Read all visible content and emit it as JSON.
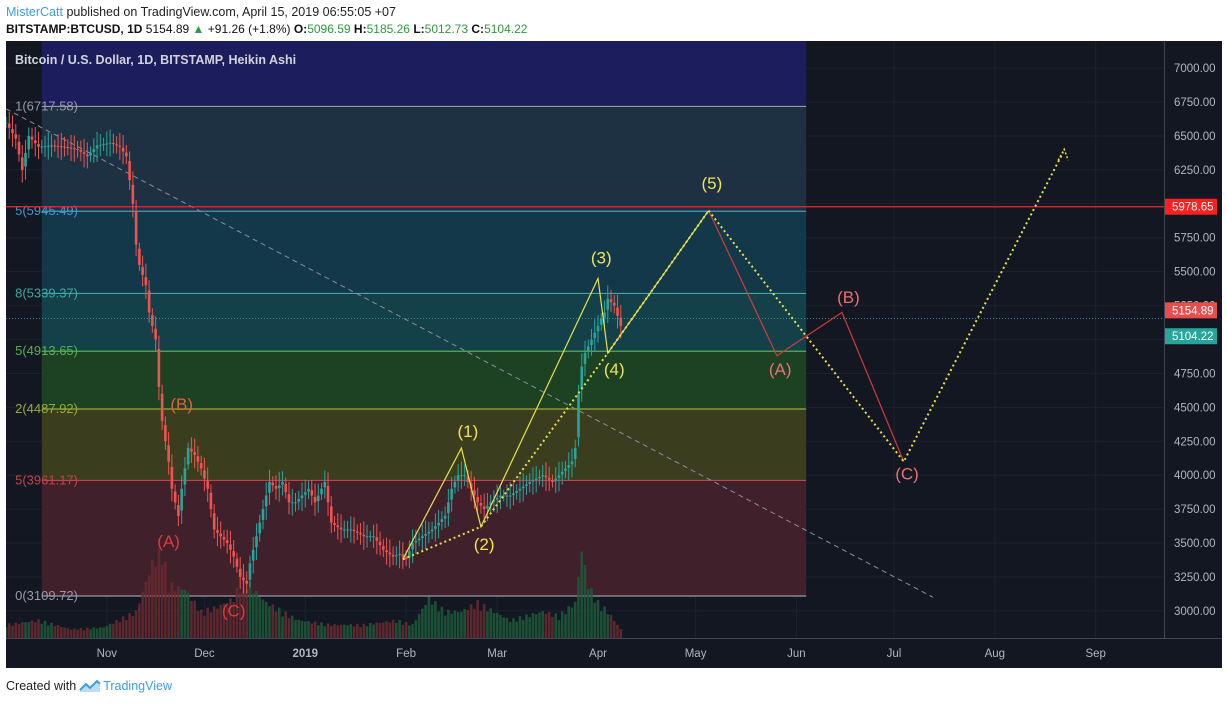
{
  "header": {
    "author": "MisterCatt",
    "published_text": "published on TradingView.com, April 15, 2019 06:55:05 +07",
    "symbol": "BITSTAMP:BTCUSD, 1D",
    "last_price": "5154.89",
    "change_text": "+91.26 (+1.8%)",
    "open_label": "O:",
    "open_value": "5096.59",
    "high_label": "H:",
    "high_value": "5185.26",
    "low_label": "L:",
    "low_value": "5012.73",
    "close_label": "C:",
    "close_value": "5104.22"
  },
  "footer": {
    "created_with": "Created with",
    "brand": "TradingView"
  },
  "colors": {
    "background": "#131722",
    "up": "#26a69a",
    "down": "#ef5350",
    "wave_yellow": "#e8e04a",
    "wave_red": "#d23a3a",
    "resistance": "#ff1f1f"
  },
  "chart_data": {
    "type": "candlestick",
    "title": "Bitcoin / U.S. Dollar, 1D, BITSTAMP, Heikin Ashi",
    "x_ticks": [
      "Nov",
      "Dec",
      "2019",
      "Feb",
      "Mar",
      "Apr",
      "May",
      "Jun",
      "Jul",
      "Aug",
      "Sep"
    ],
    "x_tick_days": [
      31,
      61,
      92,
      123,
      151,
      182,
      212,
      243,
      273,
      304,
      335
    ],
    "x_range_days": [
      0,
      356
    ],
    "ylim": [
      2800,
      7200
    ],
    "y_ticks": [
      3000,
      3250,
      3500,
      3750,
      4000,
      4250,
      4500,
      4750,
      5000,
      5250,
      5500,
      5750,
      6000,
      6250,
      6500,
      6750,
      7000
    ],
    "last_label": "5154.89",
    "last_value": 5154.89,
    "close_label": "5104.22",
    "close_value": 5104.22,
    "resistance_label": "5978.65",
    "resistance_value": 5978.65,
    "fib_levels": [
      {
        "label": "1(6717.58)",
        "value": 6717.58
      },
      {
        "label": "5(5945.49)",
        "value": 5945.49
      },
      {
        "label": "8(5339.37)",
        "value": 5339.37
      },
      {
        "label": "5(4913.65)",
        "value": 4913.65
      },
      {
        "label": "2(4487.92)",
        "value": 4487.92
      },
      {
        "label": "5(3961.17)",
        "value": 3961.17
      },
      {
        "label": "0(3109.72)",
        "value": 3109.72
      }
    ],
    "price_path": [
      [
        0,
        6600
      ],
      [
        3,
        6480
      ],
      [
        5,
        6250
      ],
      [
        7,
        6500
      ],
      [
        10,
        6420
      ],
      [
        14,
        6430
      ],
      [
        18,
        6420
      ],
      [
        22,
        6400
      ],
      [
        25,
        6350
      ],
      [
        28,
        6430
      ],
      [
        32,
        6450
      ],
      [
        35,
        6420
      ],
      [
        37,
        6350
      ],
      [
        39,
        6000
      ],
      [
        40,
        5700
      ],
      [
        41,
        5550
      ],
      [
        43,
        5400
      ],
      [
        44,
        5200
      ],
      [
        46,
        5000
      ],
      [
        47,
        4650
      ],
      [
        48,
        4400
      ],
      [
        50,
        4100
      ],
      [
        51,
        3900
      ],
      [
        53,
        3700
      ],
      [
        54,
        3900
      ],
      [
        56,
        4200
      ],
      [
        58,
        4150
      ],
      [
        60,
        4050
      ],
      [
        62,
        3900
      ],
      [
        64,
        3600
      ],
      [
        66,
        3550
      ],
      [
        68,
        3500
      ],
      [
        70,
        3400
      ],
      [
        72,
        3250
      ],
      [
        74,
        3200
      ],
      [
        75,
        3350
      ],
      [
        77,
        3550
      ],
      [
        79,
        3750
      ],
      [
        81,
        3950
      ],
      [
        83,
        3900
      ],
      [
        85,
        3950
      ],
      [
        87,
        3800
      ],
      [
        89,
        3800
      ],
      [
        91,
        3850
      ],
      [
        93,
        3900
      ],
      [
        95,
        3800
      ],
      [
        98,
        3950
      ],
      [
        100,
        3650
      ],
      [
        103,
        3600
      ],
      [
        106,
        3600
      ],
      [
        110,
        3550
      ],
      [
        113,
        3550
      ],
      [
        116,
        3450
      ],
      [
        119,
        3400
      ],
      [
        121,
        3420
      ],
      [
        123,
        3380
      ],
      [
        125,
        3500
      ],
      [
        128,
        3550
      ],
      [
        131,
        3600
      ],
      [
        135,
        3700
      ],
      [
        137,
        3900
      ],
      [
        139,
        4000
      ],
      [
        141,
        4000
      ],
      [
        143,
        3900
      ],
      [
        145,
        3800
      ],
      [
        147,
        3750
      ],
      [
        149,
        3800
      ],
      [
        152,
        3850
      ],
      [
        155,
        3850
      ],
      [
        158,
        3900
      ],
      [
        161,
        3950
      ],
      [
        165,
        4000
      ],
      [
        168,
        3950
      ],
      [
        170,
        4000
      ],
      [
        172,
        4050
      ],
      [
        174,
        4100
      ],
      [
        175,
        4200
      ],
      [
        176,
        4600
      ],
      [
        177,
        4800
      ],
      [
        178,
        4900
      ],
      [
        180,
        5000
      ],
      [
        182,
        5100
      ],
      [
        184,
        5200
      ],
      [
        185,
        5300
      ],
      [
        187,
        5250
      ],
      [
        189,
        5100
      ]
    ],
    "volume_profile": [
      [
        0,
        0.15
      ],
      [
        10,
        0.2
      ],
      [
        20,
        0.1
      ],
      [
        30,
        0.12
      ],
      [
        40,
        0.3
      ],
      [
        45,
        0.85
      ],
      [
        48,
        1.0
      ],
      [
        50,
        0.6
      ],
      [
        55,
        0.55
      ],
      [
        60,
        0.3
      ],
      [
        65,
        0.35
      ],
      [
        70,
        0.45
      ],
      [
        73,
        0.7
      ],
      [
        76,
        0.55
      ],
      [
        80,
        0.4
      ],
      [
        85,
        0.3
      ],
      [
        90,
        0.2
      ],
      [
        100,
        0.15
      ],
      [
        110,
        0.15
      ],
      [
        120,
        0.2
      ],
      [
        125,
        0.15
      ],
      [
        130,
        0.45
      ],
      [
        135,
        0.3
      ],
      [
        140,
        0.3
      ],
      [
        145,
        0.4
      ],
      [
        150,
        0.3
      ],
      [
        155,
        0.2
      ],
      [
        160,
        0.25
      ],
      [
        165,
        0.3
      ],
      [
        170,
        0.25
      ],
      [
        175,
        0.4
      ],
      [
        177,
        1.0
      ],
      [
        179,
        0.6
      ],
      [
        182,
        0.4
      ],
      [
        185,
        0.3
      ],
      [
        189,
        0.1
      ]
    ],
    "wave_labels": [
      {
        "label": "(A)",
        "day": 50,
        "value": 3470,
        "color": "red",
        "group": "abc1"
      },
      {
        "label": "(B)",
        "day": 54,
        "value": 4480,
        "color": "orange",
        "group": "abc1"
      },
      {
        "label": "(C)",
        "day": 70,
        "value": 2960,
        "color": "red",
        "group": "abc1"
      },
      {
        "label": "(1)",
        "day": 142,
        "value": 4280,
        "color": "yellow",
        "group": "impulse"
      },
      {
        "label": "(2)",
        "day": 147,
        "value": 3450,
        "color": "yellow",
        "group": "impulse"
      },
      {
        "label": "(3)",
        "day": 183,
        "value": 5560,
        "color": "yellow",
        "group": "impulse"
      },
      {
        "label": "(4)",
        "day": 187,
        "value": 4740,
        "color": "yellow",
        "group": "impulse"
      },
      {
        "label": "(5)",
        "day": 217,
        "value": 6110,
        "color": "yellow",
        "group": "impulse"
      },
      {
        "label": "(A)",
        "day": 238,
        "value": 4740,
        "color": "salmon",
        "group": "abc2"
      },
      {
        "label": "(B)",
        "day": 259,
        "value": 5270,
        "color": "salmon",
        "group": "abc2"
      },
      {
        "label": "(C)",
        "day": 277,
        "value": 3970,
        "color": "salmon",
        "group": "abc2"
      }
    ],
    "impulse_solid": [
      [
        122,
        3380
      ],
      [
        140,
        4200
      ],
      [
        146,
        3620
      ],
      [
        182,
        5450
      ],
      [
        185,
        4900
      ],
      [
        216,
        5950
      ]
    ],
    "impulse_dotted": [
      [
        122,
        3380
      ],
      [
        146,
        3620
      ],
      [
        185,
        4900
      ],
      [
        216,
        5950
      ]
    ],
    "abc2_solid": [
      [
        216,
        5950
      ],
      [
        237,
        4880
      ],
      [
        257,
        5200
      ],
      [
        276,
        4100
      ]
    ],
    "abc2_dotted": [
      [
        216,
        5950
      ],
      [
        276,
        4100
      ],
      [
        325,
        6380
      ]
    ],
    "trendline": [
      [
        0,
        6700
      ],
      [
        285,
        3100
      ]
    ]
  }
}
